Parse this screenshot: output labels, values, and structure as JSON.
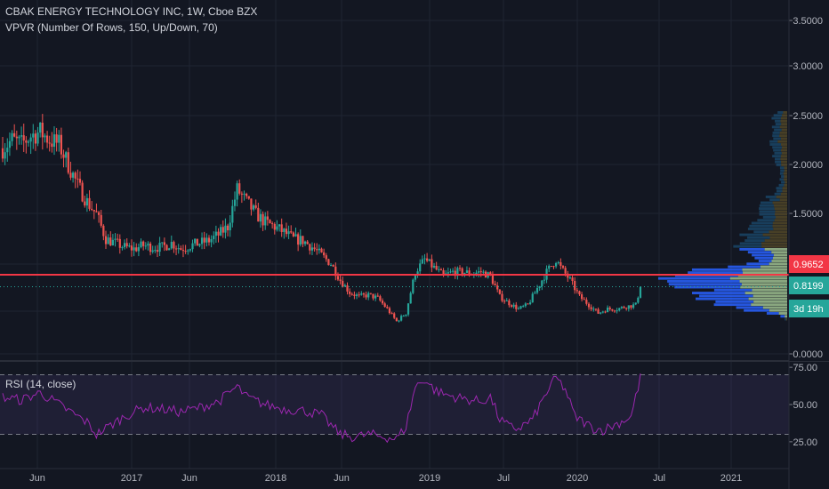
{
  "header": {
    "title": "CBAK ENERGY TECHNOLOGY INC, 1W, Cboe BZX",
    "indicator": "VPVR (Number Of Rows, 150, Up/Down, 70)"
  },
  "rsi": {
    "title": "RSI (14, close)",
    "ticks": [
      "75.00",
      "50.00",
      "25.00"
    ],
    "upper_band": 70,
    "lower_band": 30
  },
  "colors": {
    "background": "#131722",
    "up": "#26a69a",
    "down": "#ef5350",
    "price_line": "#f23645",
    "rsi_line": "#9c27b0",
    "vpvr_up": "#1e5f8c",
    "vpvr_down": "#9fbf8f",
    "vpvr_up_value_area": "#2962ff",
    "grid": "#1f2432"
  },
  "chart_data": {
    "type": "candlestick",
    "price_axis": {
      "ticks": [
        "3.5000",
        "3.0000",
        "2.5000",
        "2.0000",
        "1.5000",
        "1.0000",
        "0.5000",
        "0.0000"
      ],
      "ylim": [
        0,
        3.6
      ]
    },
    "time_axis": {
      "ticks": [
        "Jun",
        "2017",
        "Jun",
        "2018",
        "Jun",
        "2019",
        "Jul",
        "2020",
        "Jul",
        "2021"
      ]
    },
    "series": [
      {
        "name": "price",
        "anchors": [
          [
            0,
            2.5
          ],
          [
            4,
            2.6
          ],
          [
            8,
            2.55
          ],
          [
            12,
            2.65
          ],
          [
            16,
            2.7
          ],
          [
            20,
            2.6
          ],
          [
            24,
            2.55
          ],
          [
            28,
            2.3
          ],
          [
            32,
            2.05
          ],
          [
            36,
            1.85
          ],
          [
            40,
            1.7
          ],
          [
            44,
            1.4
          ],
          [
            48,
            1.35
          ],
          [
            52,
            1.3
          ],
          [
            56,
            1.28
          ],
          [
            60,
            1.32
          ],
          [
            64,
            1.3
          ],
          [
            68,
            1.3
          ],
          [
            72,
            1.35
          ],
          [
            76,
            1.28
          ],
          [
            80,
            1.32
          ],
          [
            84,
            1.35
          ],
          [
            88,
            1.38
          ],
          [
            92,
            1.45
          ],
          [
            96,
            1.55
          ],
          [
            100,
            2.0
          ],
          [
            104,
            1.85
          ],
          [
            108,
            1.7
          ],
          [
            112,
            1.6
          ],
          [
            116,
            1.55
          ],
          [
            120,
            1.48
          ],
          [
            124,
            1.4
          ],
          [
            128,
            1.38
          ],
          [
            132,
            1.3
          ],
          [
            136,
            1.2
          ],
          [
            140,
            1.1
          ],
          [
            144,
            0.9
          ],
          [
            148,
            0.75
          ],
          [
            152,
            0.7
          ],
          [
            156,
            0.72
          ],
          [
            160,
            0.68
          ],
          [
            164,
            0.55
          ],
          [
            168,
            0.4
          ],
          [
            172,
            0.5
          ],
          [
            176,
            1.0
          ],
          [
            180,
            1.15
          ],
          [
            184,
            1.05
          ],
          [
            188,
            0.95
          ],
          [
            192,
            1.0
          ],
          [
            196,
            1.0
          ],
          [
            200,
            0.98
          ],
          [
            204,
            1.0
          ],
          [
            208,
            0.95
          ],
          [
            212,
            0.7
          ],
          [
            216,
            0.62
          ],
          [
            220,
            0.55
          ],
          [
            224,
            0.6
          ],
          [
            228,
            0.8
          ],
          [
            232,
            1.0
          ],
          [
            236,
            1.15
          ],
          [
            238,
            1.05
          ],
          [
            242,
            0.9
          ],
          [
            246,
            0.7
          ],
          [
            250,
            0.6
          ],
          [
            254,
            0.5
          ],
          [
            258,
            0.55
          ],
          [
            262,
            0.55
          ],
          [
            266,
            0.58
          ],
          [
            270,
            0.6
          ],
          [
            272,
            0.82
          ]
        ],
        "last_close": 0.8199
      }
    ],
    "horizontal_line": 0.9652,
    "price_labels": [
      {
        "value": "0.9652",
        "color": "#f23645"
      },
      {
        "value": "0.8199",
        "color": "#26a69a"
      },
      {
        "value": "3d 19h",
        "color": "#26a69a"
      }
    ],
    "vpvr_rows": 150,
    "rsi_anchors": [
      [
        0,
        55
      ],
      [
        8,
        53
      ],
      [
        16,
        58
      ],
      [
        24,
        50
      ],
      [
        32,
        42
      ],
      [
        36,
        38
      ],
      [
        40,
        30
      ],
      [
        44,
        34
      ],
      [
        52,
        42
      ],
      [
        60,
        48
      ],
      [
        68,
        47
      ],
      [
        76,
        45
      ],
      [
        84,
        48
      ],
      [
        92,
        52
      ],
      [
        100,
        62
      ],
      [
        104,
        55
      ],
      [
        112,
        50
      ],
      [
        120,
        47
      ],
      [
        128,
        46
      ],
      [
        136,
        43
      ],
      [
        140,
        36
      ],
      [
        144,
        30
      ],
      [
        150,
        28
      ],
      [
        156,
        30
      ],
      [
        164,
        28
      ],
      [
        168,
        27
      ],
      [
        172,
        35
      ],
      [
        176,
        62
      ],
      [
        180,
        67
      ],
      [
        184,
        60
      ],
      [
        188,
        57
      ],
      [
        196,
        54
      ],
      [
        204,
        52
      ],
      [
        208,
        55
      ],
      [
        212,
        40
      ],
      [
        216,
        35
      ],
      [
        220,
        34
      ],
      [
        226,
        40
      ],
      [
        232,
        58
      ],
      [
        236,
        68
      ],
      [
        240,
        60
      ],
      [
        244,
        42
      ],
      [
        248,
        38
      ],
      [
        252,
        34
      ],
      [
        256,
        33
      ],
      [
        262,
        37
      ],
      [
        268,
        42
      ],
      [
        272,
        68
      ]
    ],
    "grid": true
  }
}
